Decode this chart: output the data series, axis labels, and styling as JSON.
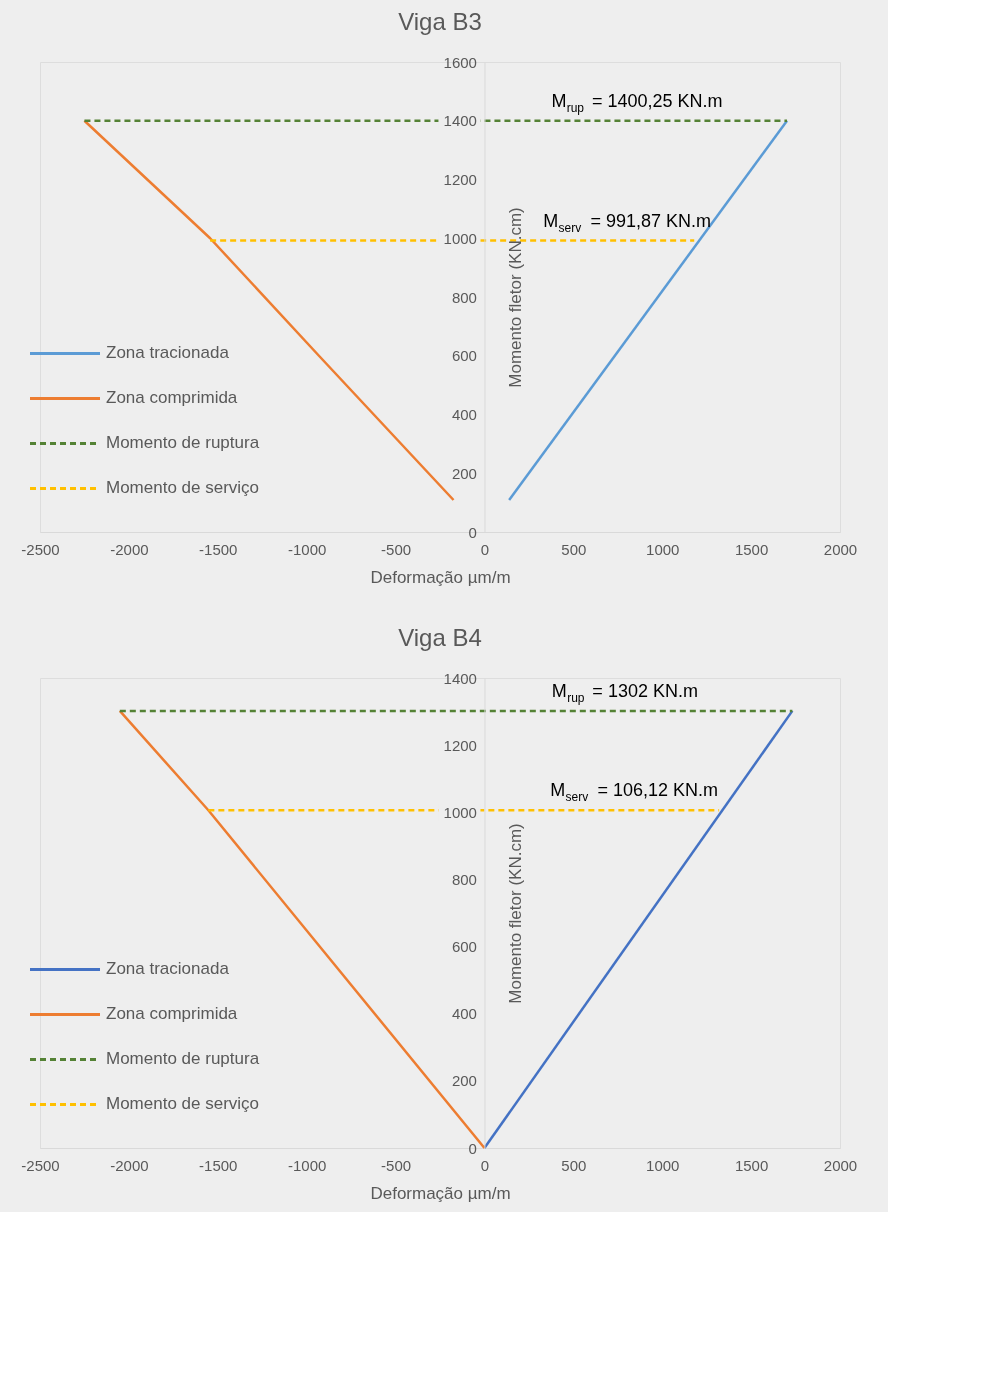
{
  "chart_data": [
    {
      "type": "line",
      "title": "Viga B3",
      "xlabel": "Deformação µm/m",
      "ylabel": "Momento fletor (KN.cm)",
      "xlim": [
        -2500,
        2000
      ],
      "xticks": [
        -2500,
        -2000,
        -1500,
        -1000,
        -500,
        0,
        500,
        1000,
        1500,
        2000
      ],
      "ylim": [
        0,
        1600
      ],
      "yticks": [
        0,
        200,
        400,
        600,
        800,
        1000,
        1200,
        1400,
        1600
      ],
      "grid": false,
      "legend": "left",
      "series": [
        {
          "name": "Zona tracionada",
          "color": "#5b9bd5",
          "line_style": "solid",
          "x": [
            139,
            1702
          ],
          "values": [
            109,
            1400
          ]
        },
        {
          "name": "Zona comprimida",
          "color": "#ed7d31",
          "line_style": "solid",
          "x": [
            -174,
            -931,
            -1543,
            -2250
          ],
          "values": [
            109,
            600,
            1000,
            1400
          ]
        },
        {
          "name": "Momento de ruptura",
          "color": "#548235",
          "line_style": "dashed",
          "x": [
            -2250,
            1702
          ],
          "values": [
            1400,
            1400
          ]
        },
        {
          "name": "Momento de serviço",
          "color": "#ffc000",
          "line_style": "dashed",
          "x": [
            -1543,
            1180
          ],
          "values": [
            992,
            992
          ]
        }
      ],
      "annotations": [
        {
          "text": "M$_{rup}$ = 1400,25 KN.m",
          "x": 1309,
          "y": 1400
        },
        {
          "text": "M$_{serv}$ = 991,87 KN.m",
          "x": 1244,
          "y": 991.87
        }
      ]
    },
    {
      "type": "line",
      "title": "Viga B4",
      "xlabel": "Deformação µm/m",
      "ylabel": "Momento fletor (KN.cm)",
      "xlim": [
        -2500,
        2000
      ],
      "xticks": [
        -2500,
        -2000,
        -1500,
        -1000,
        -500,
        0,
        500,
        1000,
        1500,
        2000
      ],
      "ylim": [
        0,
        1400
      ],
      "yticks": [
        0,
        200,
        400,
        600,
        800,
        1000,
        1200,
        1400
      ],
      "grid": false,
      "legend": "left",
      "series": [
        {
          "name": "Zona tracionada",
          "color": "#4472c4",
          "line_style": "solid",
          "x": [
            0,
            1732
          ],
          "values": [
            0,
            1302
          ]
        },
        {
          "name": "Zona comprimida",
          "color": "#ed7d31",
          "line_style": "solid",
          "x": [
            0,
            -1553,
            -2051
          ],
          "values": [
            0,
            1006,
            1302
          ]
        },
        {
          "name": "Momento de ruptura",
          "color": "#548235",
          "line_style": "dashed",
          "x": [
            -2051,
            1732
          ],
          "values": [
            1302,
            1302
          ]
        },
        {
          "name": "Momento de serviço",
          "color": "#ffc000",
          "line_style": "dashed",
          "x": [
            -1553,
            1320
          ],
          "values": [
            1006,
            1006
          ]
        }
      ],
      "annotations": [
        {
          "text": "M$_{rup}$ = 1302 KN.m",
          "x": 1170,
          "y": 1302
        },
        {
          "text": "M$_{serv}$ = 106,12 KN.m",
          "x": 1284,
          "y": 1006
        }
      ]
    }
  ]
}
